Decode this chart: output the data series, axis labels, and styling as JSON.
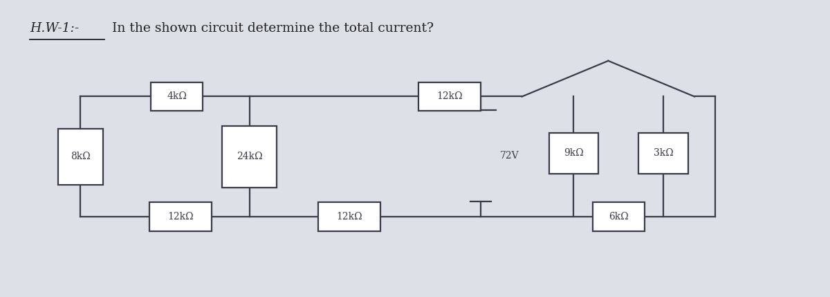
{
  "title_italic": "H.W-1:-",
  "title_rest": " In the shown circuit determine the total current?",
  "bg_color": "#dde0e6",
  "line_color": "#3a3a4a",
  "voltage_label": "72V"
}
